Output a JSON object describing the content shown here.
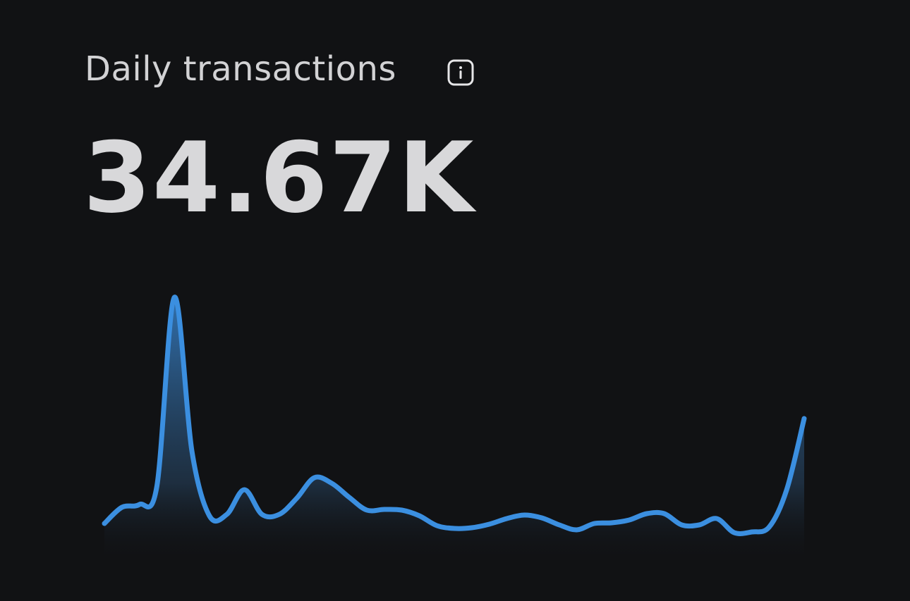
{
  "header": {
    "title": "Daily transactions",
    "value": "34.67K"
  },
  "chart_data": {
    "type": "line",
    "color": "#3b8fe0",
    "ylim": [
      0,
      400
    ],
    "values": [
      57,
      80,
      84,
      110,
      378,
      160,
      68,
      70,
      105,
      70,
      70,
      93,
      122,
      114,
      94,
      76,
      77,
      76,
      68,
      54,
      50,
      51,
      56,
      64,
      69,
      65,
      55,
      48,
      57,
      58,
      62,
      71,
      71,
      55,
      55,
      64,
      44,
      45,
      52,
      105,
      206
    ]
  }
}
